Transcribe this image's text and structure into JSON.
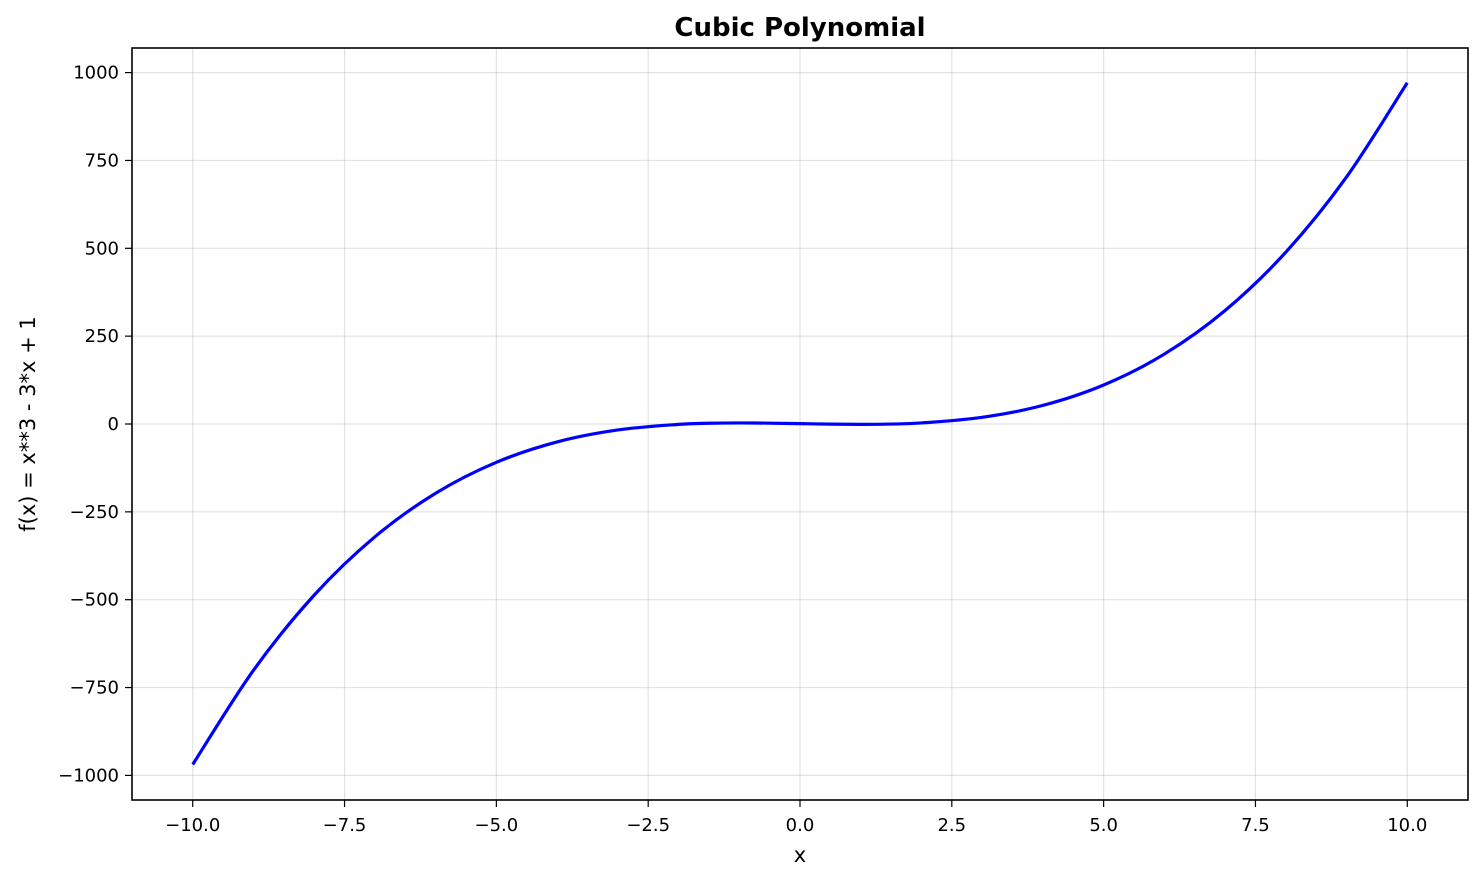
{
  "chart_data": {
    "type": "line",
    "title": "Cubic Polynomial",
    "xlabel": "x",
    "ylabel": "f(x) = x**3 - 3*x + 1",
    "xlim": [
      -11.0,
      11.0
    ],
    "ylim": [
      -1070,
      1070
    ],
    "grid": true,
    "xticks": [
      -10.0,
      -7.5,
      -5.0,
      -2.5,
      0.0,
      2.5,
      5.0,
      7.5,
      10.0
    ],
    "xtick_labels": [
      "−10.0",
      "−7.5",
      "−5.0",
      "−2.5",
      "0.0",
      "2.5",
      "5.0",
      "7.5",
      "10.0"
    ],
    "yticks": [
      -1000,
      -750,
      -500,
      -250,
      0,
      250,
      500,
      750,
      1000
    ],
    "ytick_labels": [
      "−1000",
      "−750",
      "−500",
      "−250",
      "0",
      "250",
      "500",
      "750",
      "1000"
    ],
    "series": [
      {
        "color": "#0000ff",
        "x": [
          -10,
          -9,
          -8,
          -7,
          -6,
          -5,
          -4,
          -3,
          -2,
          -1.5,
          -1,
          -0.5,
          0,
          0.5,
          1,
          1.5,
          2,
          3,
          4,
          5,
          6,
          7,
          8,
          9,
          10
        ],
        "y": [
          -969,
          -701,
          -487,
          -321,
          -197,
          -109,
          -51,
          -17,
          -1,
          2.125,
          3,
          2.375,
          1,
          -0.375,
          -1,
          -0.125,
          3,
          19,
          53,
          111,
          199,
          323,
          489,
          703,
          971
        ]
      }
    ]
  }
}
